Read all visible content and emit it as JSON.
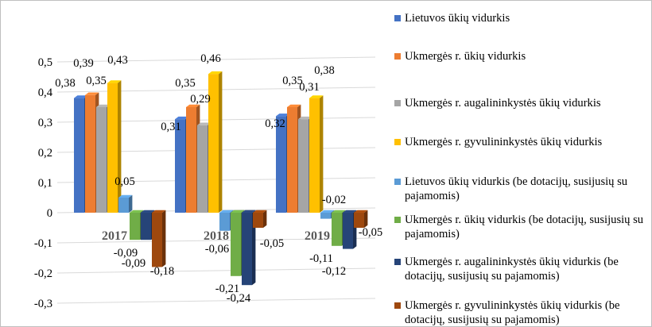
{
  "chart_data": {
    "type": "bar",
    "title": "",
    "xlabel": "",
    "ylabel": "",
    "ylim": [
      -0.3,
      0.5
    ],
    "yticks": [
      "0,5",
      "0,4",
      "0,3",
      "0,2",
      "0,1",
      "0",
      "-0,1",
      "-0,2",
      "-0,3"
    ],
    "grid": true,
    "legend_position": "right",
    "style": "3d-clustered-column",
    "categories": [
      "2017",
      "2018",
      "2019"
    ],
    "series": [
      {
        "name": "Lietuvos ūkių vidurkis",
        "color": "#4472c4",
        "values": [
          0.38,
          0.31,
          0.32
        ],
        "labels": [
          "0,38",
          "0,31",
          "0,32"
        ]
      },
      {
        "name": "Ukmergės r. ūkių vidurkis",
        "color": "#ed7d31",
        "values": [
          0.39,
          0.35,
          0.35
        ],
        "labels": [
          "0,39",
          "0,35",
          "0,35"
        ]
      },
      {
        "name": "Ukmergės r. augalininkystės ūkių vidurkis",
        "color": "#a5a5a5",
        "values": [
          0.35,
          0.29,
          0.31
        ],
        "labels": [
          "0,35",
          "0,29",
          "0,31"
        ]
      },
      {
        "name": "Ukmergės r. gyvulininkystės ūkių vidurkis",
        "color": "#ffc000",
        "values": [
          0.43,
          0.46,
          0.38
        ],
        "labels": [
          "0,43",
          "0,46",
          "0,38"
        ]
      },
      {
        "name": "Lietuvos ūkių vidurkis (be dotacijų, susijusių su pajamomis)",
        "color": "#5b9bd5",
        "values": [
          0.05,
          -0.06,
          -0.02
        ],
        "labels": [
          "0,05",
          "-0,06",
          "-0,02"
        ]
      },
      {
        "name": "Ukmergės r. ūkių vidurkis (be dotacijų, susijusių su pajamomis)",
        "color": "#70ad47",
        "values": [
          -0.09,
          -0.21,
          -0.11
        ],
        "labels": [
          "-0,09",
          "-0,21",
          "-0,11"
        ]
      },
      {
        "name": "Ukmergės r. augalininkystės ūkių vidurkis (be dotacijų, susijusių su pajamomis)",
        "color": "#264478",
        "values": [
          -0.09,
          -0.24,
          -0.12
        ],
        "labels": [
          "-0,09",
          "-0,24",
          "-0,12"
        ]
      },
      {
        "name": "Ukmergės r. gyvulininkystės ūkių vidurkis (be dotacijų, susijusių su pajamomis)",
        "color": "#9e480e",
        "values": [
          -0.18,
          -0.05,
          -0.05
        ],
        "labels": [
          "-0,18",
          "-0,05",
          "-0,05"
        ]
      }
    ]
  }
}
